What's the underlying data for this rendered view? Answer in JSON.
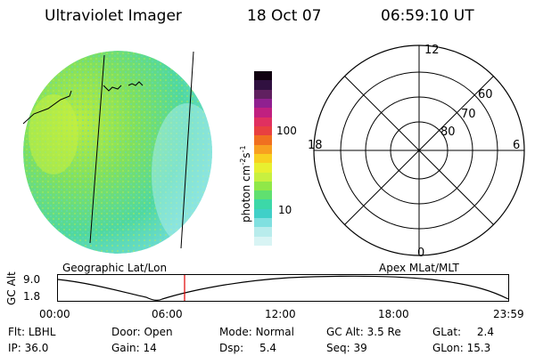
{
  "header": {
    "title": "Ultraviolet Imager",
    "date": "18 Oct 07",
    "time": "06:59:10 UT"
  },
  "colorbar": {
    "label": "photon cm",
    "label_sup1": "-2",
    "label_s": "s",
    "label_sup2": "-1",
    "ticks": [
      {
        "text": "100",
        "value": 100
      },
      {
        "text": "10",
        "value": 10
      }
    ],
    "scale": "log",
    "range": [
      2,
      600
    ],
    "colors": [
      "#d8f4f4",
      "#b8ecec",
      "#80e0e0",
      "#40d0c8",
      "#3cd8a8",
      "#60e070",
      "#90e848",
      "#c8f040",
      "#e8f030",
      "#f8d020",
      "#f8a020",
      "#f07020",
      "#e84040",
      "#e03060",
      "#c02080",
      "#902090",
      "#602060",
      "#301040",
      "#100010"
    ]
  },
  "polar_grid": {
    "labels": [
      "12",
      "60",
      "70",
      "80",
      "18",
      "6",
      "0"
    ]
  },
  "footer_labels": {
    "left": "Geographic Lat/Lon",
    "right": "Apex MLat/MLT"
  },
  "timeline": {
    "ylabel": "GC Alt",
    "yticks": [
      "9.0",
      "1.8"
    ],
    "xticks": [
      "00:00",
      "06:00",
      "12:00",
      "18:00",
      "23:59"
    ],
    "marker_time": "06:59",
    "marker_color": "#e00000"
  },
  "info": {
    "row1": [
      {
        "label": "Flt:",
        "value": "LBHL"
      },
      {
        "label": "Door:",
        "value": "Open"
      },
      {
        "label": "Mode:",
        "value": "Normal"
      },
      {
        "label": "GC Alt:",
        "value": "3.5 Re"
      },
      {
        "label": "GLat:",
        "value": "2.4"
      }
    ],
    "row2": [
      {
        "label": "IP:",
        "value": "36.0"
      },
      {
        "label": "Gain:",
        "value": "14"
      },
      {
        "label": "Dsp:",
        "value": "5.4"
      },
      {
        "label": "Seq:",
        "value": "39"
      },
      {
        "label": "GLon:",
        "value": "15.3"
      }
    ]
  }
}
